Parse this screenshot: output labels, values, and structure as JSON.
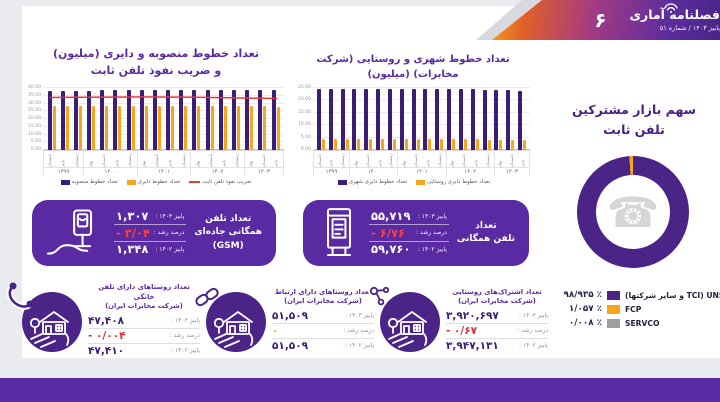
{
  "header": {
    "page_number": "۶",
    "logo_title": "فصلنامه آماری",
    "issue_line": "پاییز ۱۴۰۳ / شماره ۵۱"
  },
  "left_chart_title_lines": [
    "تعداد خطوط منصوبه و دایری (میلیون)",
    "و ضریب نفوذ تلفن ثابت"
  ],
  "mid_chart_title": "تعداد خطوط شهری و روستایی (شرکت مخابرات) (میلیون)",
  "donut_title_lines": [
    "سهم بازار مشترکین",
    "تلفن ثابت"
  ],
  "gsm_box": {
    "title_lines": [
      "تعداد تلفن",
      "همگانی جاده‌ای",
      "(GSM)"
    ],
    "rows": [
      {
        "label": "پاییز ۱۴۰۳ :",
        "value": "۱,۳۰۷"
      },
      {
        "label": "درصد رشد :",
        "value": "- ۳/۰۴"
      },
      {
        "label": "پاییز ۱۴۰۲ :",
        "value": "۱,۳۴۸"
      }
    ]
  },
  "public_box": {
    "title_lines": [
      "تعداد",
      "تلفن همگانی"
    ],
    "rows": [
      {
        "label": "پاییز ۱۴۰۳ :",
        "value": "۵۵,۷۱۹"
      },
      {
        "label": "درصد رشد :",
        "value": "- ۶/۷۶"
      },
      {
        "label": "پاییز ۱۴۰۲ :",
        "value": "۵۹,۷۶۰"
      }
    ]
  },
  "village_groups": [
    {
      "title_lines": [
        "تعداد اشتراک‌های روستایی",
        "(شرکت مخابرات ایران)"
      ],
      "rows": [
        {
          "label": "پاییز ۱۴۰۳ :",
          "value": "۳,۹۲۰,۶۹۷"
        },
        {
          "label": "درصد رشد :",
          "value": "- ۰/۶۷"
        },
        {
          "label": "پاییز ۱۴۰۲ :",
          "value": "۳,۹۴۷,۱۳۱"
        }
      ]
    },
    {
      "title_lines": [
        "تعداد روستاهای دارای ارتباط",
        "(شرکت مخابرات ایران)"
      ],
      "rows": [
        {
          "label": "پاییز ۱۴۰۳ :",
          "value": "۵۱,۵۰۹"
        },
        {
          "label": "درصد رشد :",
          "value": "۰"
        },
        {
          "label": "پاییز ۱۴۰۲ :",
          "value": "۵۱,۵۰۹"
        }
      ]
    },
    {
      "title_lines": [
        "تعداد روستاهای دارای تلفن خانگی",
        "(شرکت مخابرات ایران)"
      ],
      "rows": [
        {
          "label": "پاییز ۱۴۰۳ :",
          "value": "۴۷,۴۰۸"
        },
        {
          "label": "درصد رشد :",
          "value": "- ۰/۰۰۴"
        },
        {
          "label": "پاییز ۱۴۰۲ :",
          "value": "۴۷,۴۱۰"
        }
      ]
    }
  ],
  "chart_data": [
    {
      "type": "bar",
      "title": "تعداد خطوط منصوبه و دایری (میلیون) و ضریب نفوذ تلفن ثابت",
      "ylim": [
        0,
        40
      ],
      "ytick_step": 5,
      "grid": true,
      "legend_position": "bottom",
      "x_groups": [
        {
          "year": "۱۳۹۹",
          "quarters": [
            "تابستان",
            "پاییز",
            "زمستان"
          ]
        },
        {
          "year": "۱۴۰۰",
          "quarters": [
            "بهار",
            "تابستان",
            "پاییز",
            "زمستان"
          ]
        },
        {
          "year": "۱۴۰۱",
          "quarters": [
            "بهار",
            "تابستان",
            "پاییز",
            "زمستان"
          ]
        },
        {
          "year": "۱۴۰۲",
          "quarters": [
            "بهار",
            "تابستان",
            "پاییز",
            "زمستان"
          ]
        },
        {
          "year": "۱۴۰۳",
          "quarters": [
            "بهار",
            "تابستان",
            "پاییز"
          ]
        }
      ],
      "series": [
        {
          "name": "تعداد خطوط منصوبه",
          "type": "bar",
          "color": "#3b1c77",
          "values": [
            38.2,
            38.25,
            38.3,
            38.35,
            38.4,
            38.45,
            38.5,
            38.55,
            38.6,
            38.6,
            38.65,
            38.7,
            38.7,
            38.75,
            38.8,
            38.6,
            38.7,
            38.9
          ]
        },
        {
          "name": "تعداد خطوط دایری",
          "type": "bar",
          "color": "#f7a51d",
          "values": [
            28.3,
            28.3,
            28.35,
            28.4,
            28.4,
            28.45,
            28.5,
            28.5,
            28.55,
            28.5,
            28.5,
            28.45,
            28.4,
            28.4,
            28.35,
            28.2,
            28.1,
            28.0
          ]
        },
        {
          "name": "ضریب نفوذ تلفن ثابت",
          "type": "line",
          "color": "#e8393d",
          "values": [
            33.9,
            33.95,
            34.0,
            34.05,
            34.1,
            34.15,
            34.2,
            34.25,
            34.2,
            34.15,
            34.1,
            34.0,
            33.9,
            33.8,
            33.65,
            33.5,
            33.35,
            33.2
          ]
        }
      ]
    },
    {
      "type": "bar",
      "title": "تعداد خطوط شهری و روستایی (شرکت مخابرات) (میلیون)",
      "ylim": [
        0,
        25
      ],
      "ytick_step": 5,
      "grid": true,
      "legend_position": "bottom",
      "x_groups": [
        {
          "year": "۱۳۹۹",
          "quarters": [
            "تابستان",
            "پاییز",
            "زمستان"
          ]
        },
        {
          "year": "۱۴۰۰",
          "quarters": [
            "بهار",
            "تابستان",
            "پاییز",
            "زمستان"
          ]
        },
        {
          "year": "۱۴۰۱",
          "quarters": [
            "بهار",
            "تابستان",
            "پاییز",
            "زمستان"
          ]
        },
        {
          "year": "۱۴۰۲",
          "quarters": [
            "بهار",
            "تابستان",
            "پاییز",
            "زمستان"
          ]
        },
        {
          "year": "۱۴۰۳",
          "quarters": [
            "بهار",
            "تابستان",
            "پاییز"
          ]
        }
      ],
      "series": [
        {
          "name": "تعداد خطوط دایری شهری",
          "type": "bar",
          "color": "#3b1c77",
          "values": [
            24.7,
            24.7,
            24.7,
            24.72,
            24.7,
            24.68,
            24.65,
            24.7,
            24.68,
            24.65,
            24.6,
            24.6,
            24.55,
            24.5,
            24.35,
            24.2,
            24.1,
            23.9
          ]
        },
        {
          "name": "تعداد خطوط دایری روستایی",
          "type": "bar",
          "color": "#f7a51d",
          "values": [
            4.4,
            4.4,
            4.4,
            4.4,
            4.4,
            4.4,
            4.38,
            4.38,
            4.36,
            4.35,
            4.33,
            4.3,
            4.28,
            4.25,
            4.15,
            4.05,
            4.0,
            3.9
          ]
        }
      ]
    },
    {
      "type": "pie",
      "title": "سهم بازار مشترکین تلفن ثابت",
      "slices": [
        {
          "label": "UNSP (TCI و سایر شرکتها)",
          "value": 98.935,
          "display": "۹۸/۹۳۵ ٪",
          "color": "#4b2487"
        },
        {
          "label": "FCP",
          "value": 1.057,
          "display": "۱/۰۵۷ ٪",
          "color": "#f7a51d"
        },
        {
          "label": "SERVCO",
          "value": 0.008,
          "display": "۰/۰۰۸ ٪",
          "color": "#9e9ea3"
        }
      ],
      "center_icon": "telephone-icon"
    }
  ]
}
